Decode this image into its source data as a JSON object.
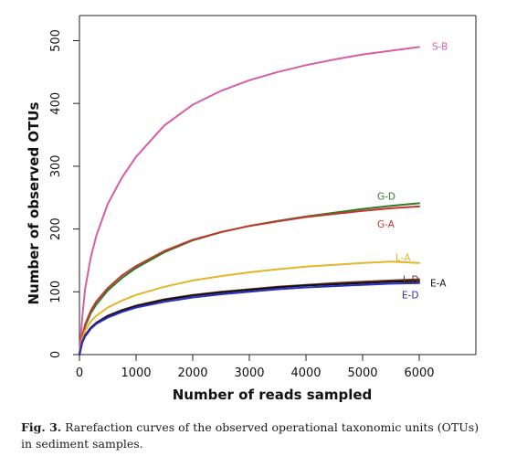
{
  "chart_data": {
    "type": "line",
    "xlabel": "Number of reads sampled",
    "ylabel": "Number of observed OTUs",
    "xlim": [
      0,
      7000
    ],
    "ylim": [
      0,
      540
    ],
    "xticks": [
      0,
      1000,
      2000,
      3000,
      4000,
      5000,
      6000
    ],
    "yticks": [
      0,
      100,
      200,
      300,
      400,
      500
    ],
    "grid": false,
    "series": [
      {
        "name": "S-B",
        "color": "#d45fa6",
        "x": [
          0,
          50,
          100,
          200,
          300,
          500,
          750,
          1000,
          1500,
          2000,
          2500,
          3000,
          3500,
          4000,
          4500,
          5000,
          5500,
          6000
        ],
        "y": [
          0,
          60,
          105,
          155,
          190,
          240,
          282,
          315,
          365,
          398,
          420,
          437,
          450,
          461,
          470,
          478,
          484,
          490
        ]
      },
      {
        "name": "G-D",
        "color": "#2f7a2f",
        "x": [
          0,
          50,
          100,
          200,
          300,
          500,
          750,
          1000,
          1500,
          2000,
          2500,
          3000,
          3500,
          4000,
          4500,
          5000,
          5500,
          6000
        ],
        "y": [
          0,
          28,
          45,
          66,
          80,
          102,
          122,
          138,
          163,
          182,
          195,
          205,
          213,
          220,
          226,
          232,
          237,
          241
        ]
      },
      {
        "name": "G-A",
        "color": "#c0392b",
        "x": [
          0,
          50,
          100,
          200,
          300,
          500,
          750,
          1000,
          1500,
          2000,
          2500,
          3000,
          3500,
          4000,
          4500,
          5000,
          5500,
          6000
        ],
        "y": [
          0,
          30,
          48,
          70,
          85,
          106,
          126,
          141,
          165,
          183,
          195,
          205,
          212,
          219,
          224,
          229,
          233,
          236
        ]
      },
      {
        "name": "L-A",
        "color": "#e3b52a",
        "x": [
          0,
          50,
          100,
          200,
          300,
          500,
          750,
          1000,
          1500,
          2000,
          2500,
          3000,
          3500,
          4000,
          4500,
          5000,
          5500,
          6000
        ],
        "y": [
          0,
          25,
          38,
          53,
          62,
          75,
          86,
          95,
          108,
          118,
          125,
          131,
          136,
          140,
          143,
          146,
          148,
          146
        ]
      },
      {
        "name": "L-D",
        "color": "#6b2e1f",
        "x": [
          0,
          50,
          100,
          200,
          300,
          500,
          750,
          1000,
          1500,
          2000,
          2500,
          3000,
          3500,
          4000,
          4500,
          5000,
          5500,
          6000
        ],
        "y": [
          0,
          20,
          31,
          43,
          51,
          62,
          71,
          78,
          88,
          95,
          100,
          104,
          108,
          111,
          114,
          116,
          118,
          120
        ]
      },
      {
        "name": "E-A",
        "color": "#111111",
        "x": [
          0,
          50,
          100,
          200,
          300,
          500,
          750,
          1000,
          1500,
          2000,
          2500,
          3000,
          3500,
          4000,
          4500,
          5000,
          5500,
          6000
        ],
        "y": [
          0,
          20,
          30,
          42,
          50,
          61,
          70,
          77,
          87,
          94,
          99,
          103,
          107,
          110,
          112,
          114,
          116,
          117
        ]
      },
      {
        "name": "E-D",
        "color": "#2a2fc4",
        "x": [
          0,
          50,
          100,
          200,
          300,
          500,
          750,
          1000,
          1500,
          2000,
          2500,
          3000,
          3500,
          4000,
          4500,
          5000,
          5500,
          6000
        ],
        "y": [
          0,
          19,
          29,
          41,
          49,
          59,
          68,
          75,
          84,
          91,
          96,
          100,
          104,
          107,
          109,
          111,
          113,
          114
        ]
      }
    ]
  },
  "caption": {
    "label": "Fig. 3.",
    "text": " Rarefaction curves of the observed operational taxonomic units (OTUs) in sediment samples."
  }
}
